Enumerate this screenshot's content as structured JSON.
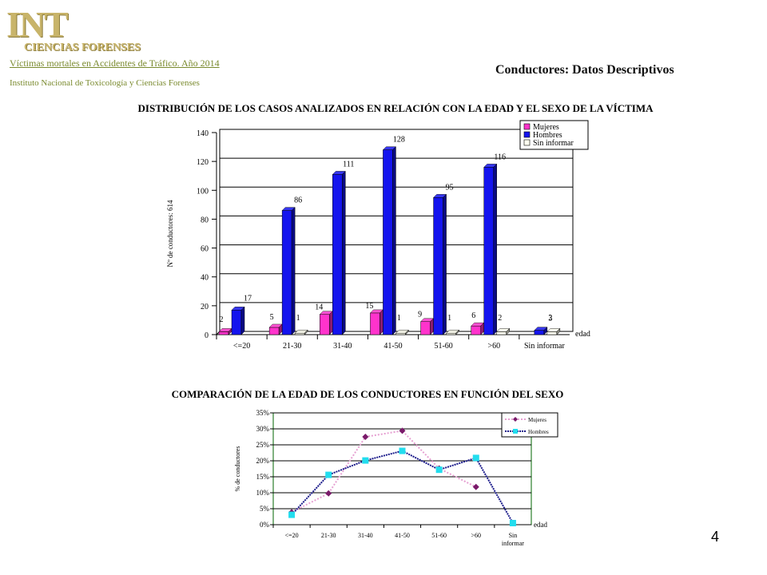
{
  "header": {
    "logo_text": "INT",
    "logo_subtext": "CIENCIAS FORENSES",
    "link": "Víctimas mortales en Accidentes de Tráfico. Año 2014",
    "institute": "Instituto Nacional de Toxicología y Ciencias Forenses",
    "section_title": "Conductores: Datos Descriptivos"
  },
  "page_number": "4",
  "colors": {
    "mujeres": "#ff33cc",
    "hombres": "#1414ee",
    "sin_informar": "#fffff0",
    "line_mujeres_marker": "#7a1a6a",
    "line_mujeres": "#e6a0d2",
    "line_hombres": "#1a1a8a",
    "line_hombres_marker": "#22ddee",
    "header_text": "#7a8a2e",
    "logo": "#c8b46a"
  },
  "chart_data": [
    {
      "type": "bar",
      "title": "DISTRIBUCIÓN DE LOS CASOS ANALIZADOS EN RELACIÓN CON LA EDAD Y EL SEXO DE LA VÍCTIMA",
      "ylabel": "Nº de conductores: 614",
      "xlabel": "edad",
      "categories": [
        "<=20",
        "21-30",
        "31-40",
        "41-50",
        "51-60",
        ">60",
        "Sin informar"
      ],
      "ylim": [
        0,
        140
      ],
      "yticks": [
        "0",
        "20",
        "40",
        "60",
        "80",
        "100",
        "120",
        "140"
      ],
      "legend_position": "top-right",
      "series": [
        {
          "name": "Mujeres",
          "values": [
            2,
            5,
            14,
            15,
            9,
            6,
            0
          ],
          "labels": [
            "2",
            "5",
            "14",
            "15",
            "9",
            "6",
            ""
          ]
        },
        {
          "name": "Hombres",
          "values": [
            17,
            86,
            111,
            128,
            95,
            116,
            3
          ],
          "labels": [
            "17",
            "86",
            "111",
            "128",
            "95",
            "116",
            "3"
          ]
        },
        {
          "name": "Sin informar",
          "values": [
            0,
            1,
            0,
            1,
            1,
            2,
            2
          ],
          "labels": [
            "",
            "1",
            "",
            "1",
            "1",
            "2",
            "2"
          ]
        }
      ]
    },
    {
      "type": "line",
      "title": "COMPARACIÓN DE LA EDAD DE LOS CONDUCTORES EN FUNCIÓN DEL SEXO",
      "ylabel": "% de conductores",
      "xlabel": "edad",
      "categories": [
        "<=20",
        "21-30",
        "31-40",
        "41-50",
        "51-60",
        ">60",
        "Sin informar"
      ],
      "ylim": [
        0,
        35
      ],
      "yticks": [
        "0%",
        "5%",
        "10%",
        "15%",
        "20%",
        "25%",
        "30%",
        "35%"
      ],
      "legend_position": "top-right",
      "series": [
        {
          "name": "Mujeres",
          "values": [
            3.9,
            9.8,
            27.5,
            29.4,
            17.6,
            11.8,
            null
          ]
        },
        {
          "name": "Hombres",
          "values": [
            3.1,
            15.6,
            20.1,
            23.1,
            17.2,
            20.9,
            0.5
          ]
        }
      ]
    }
  ]
}
